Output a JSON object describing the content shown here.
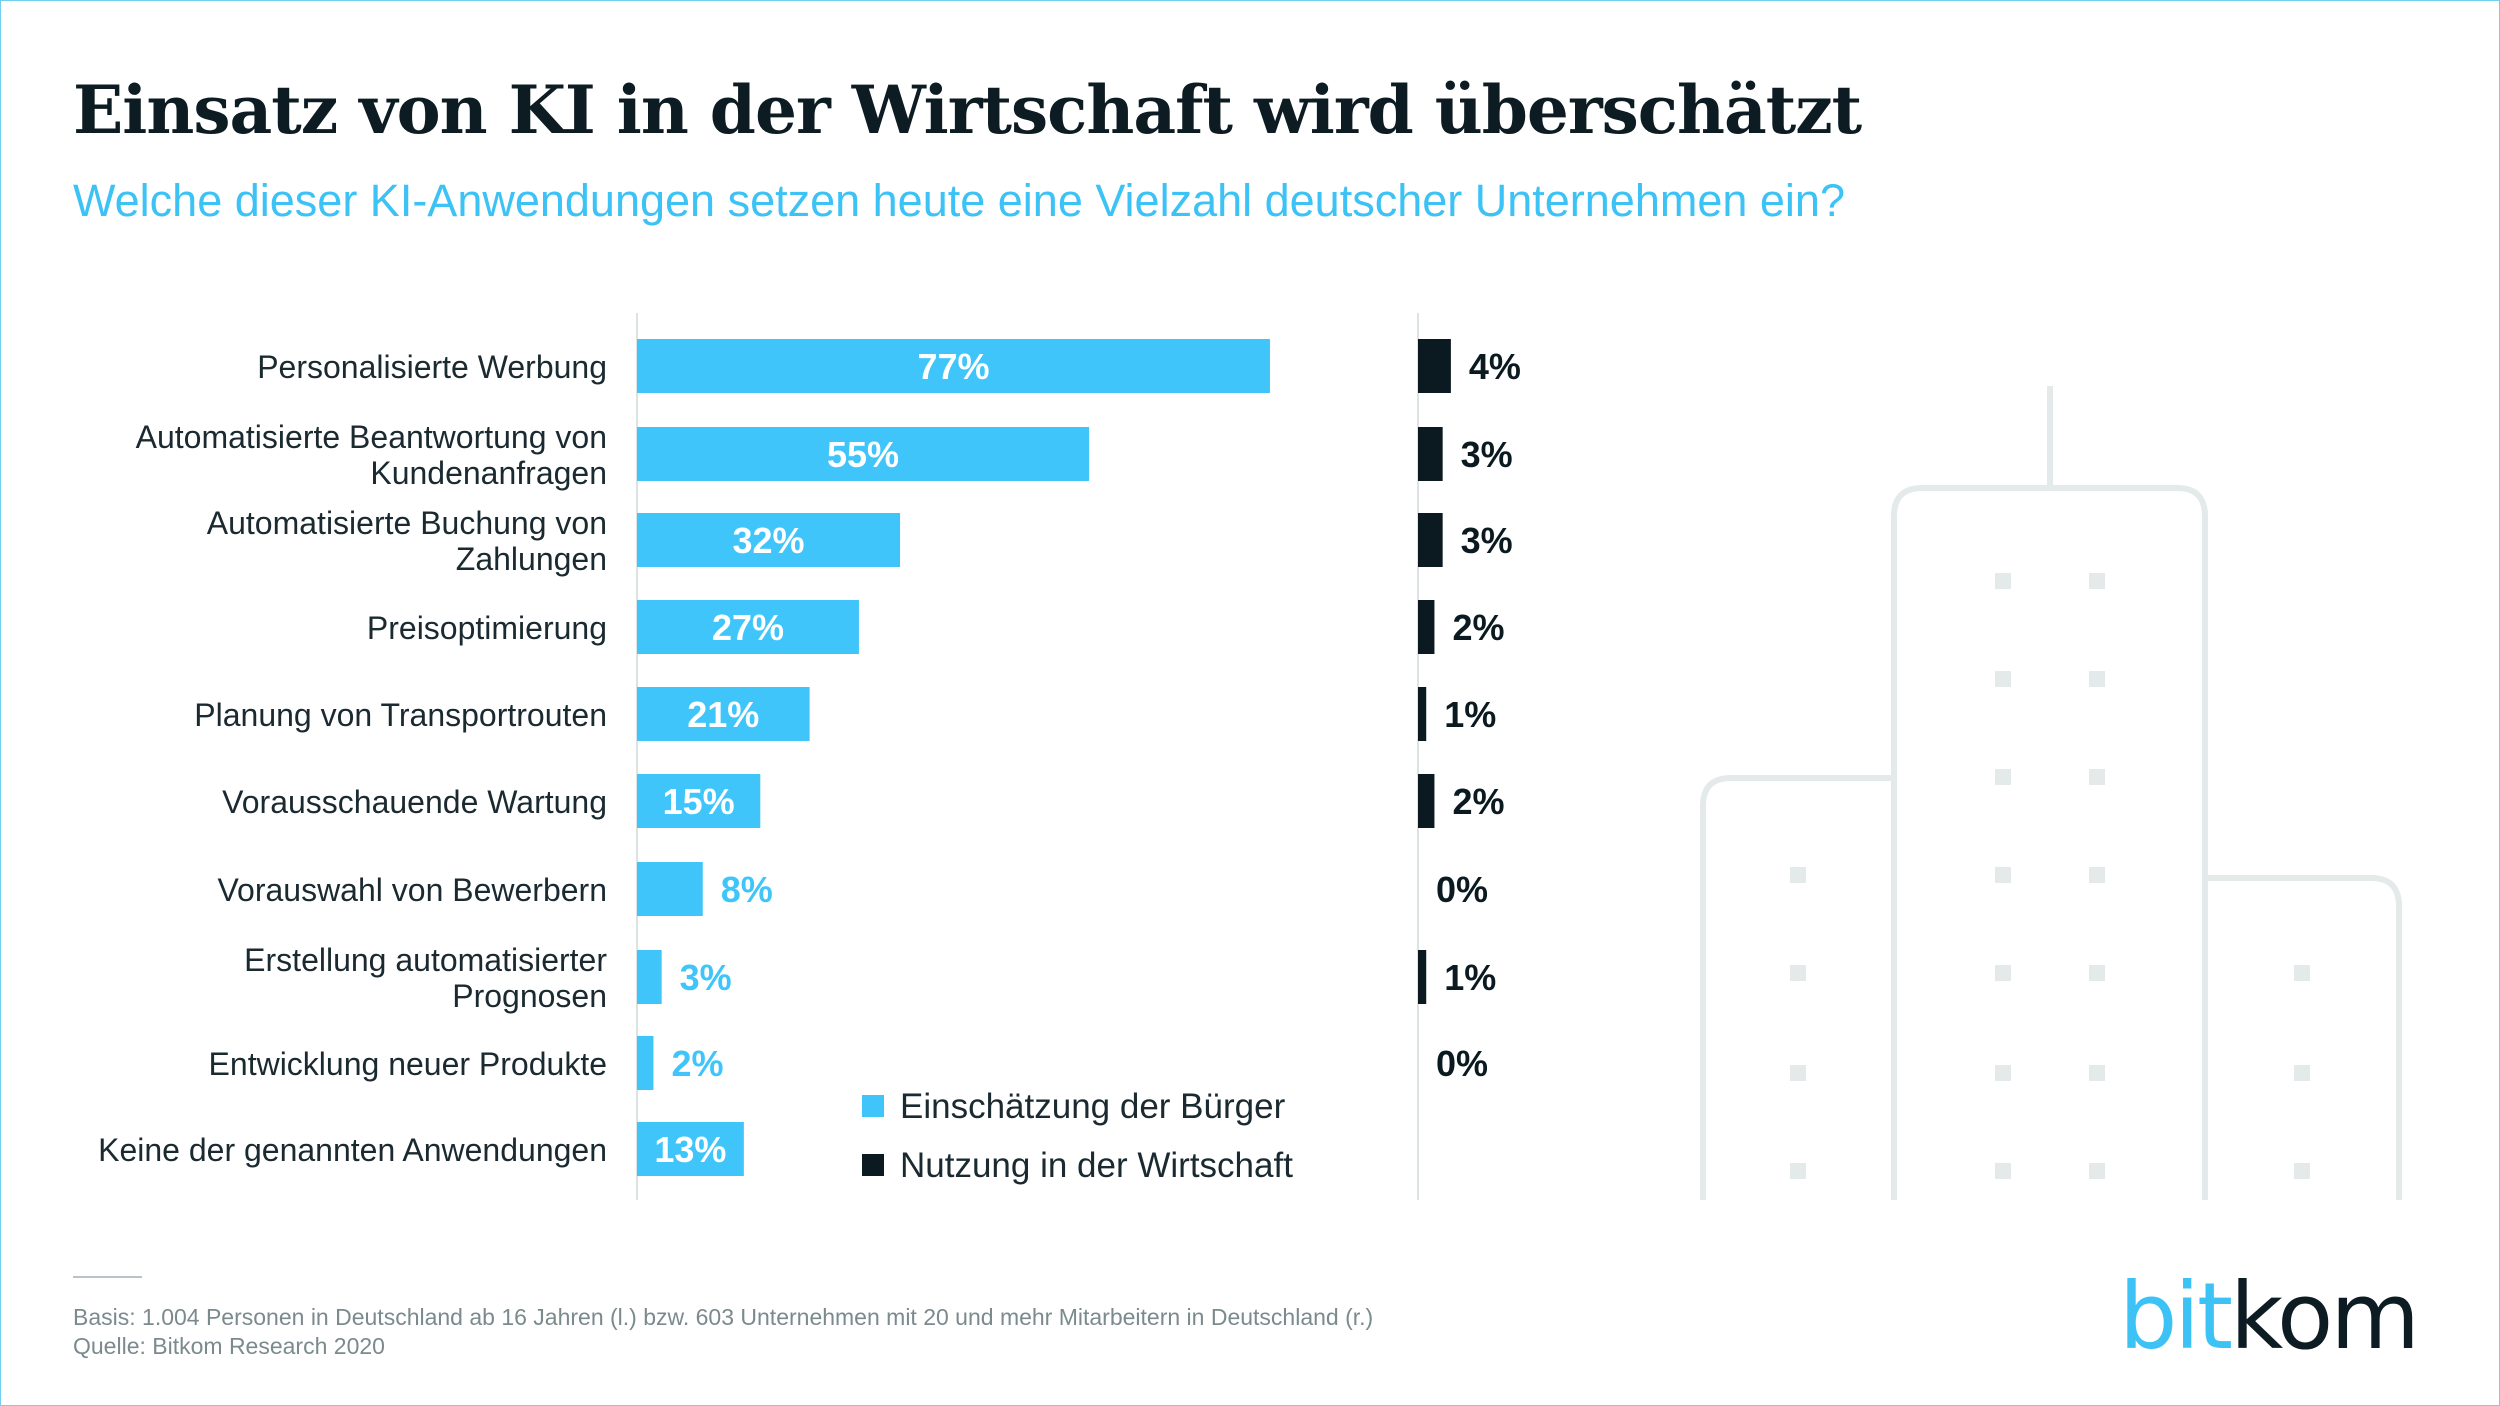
{
  "title": "Einsatz von KI in der Wirtschaft wird überschätzt",
  "subtitle": "Welche dieser KI-Anwendungen setzen heute eine Vielzahl deutscher Unternehmen ein?",
  "colors": {
    "citizens": "#40c5fa",
    "business": "#0b1a21",
    "building": "#e4e9ea"
  },
  "chart_data": {
    "type": "bar",
    "orientation": "horizontal",
    "categories": [
      "Personalisierte Werbung",
      "Automatisierte Beantwortung von Kundenanfragen",
      "Automatisierte Buchung von Zahlungen",
      "Preisoptimierung",
      "Planung von Transportrouten",
      "Vorausschauende Wartung",
      "Vorauswahl von Bewerbern",
      "Erstellung automatisierter Prognosen",
      "Entwicklung neuer Produkte",
      "Keine der genannten Anwendungen"
    ],
    "category_lines": [
      [
        "Personalisierte Werbung"
      ],
      [
        "Automatisierte Beantwortung von",
        "Kundenanfragen"
      ],
      [
        "Automatisierte Buchung von",
        "Zahlungen"
      ],
      [
        "Preisoptimierung"
      ],
      [
        "Planung von Transportrouten"
      ],
      [
        "Vorausschauende Wartung"
      ],
      [
        "Vorauswahl von Bewerbern"
      ],
      [
        "Erstellung automatisierter",
        "Prognosen"
      ],
      [
        "Entwicklung neuer Produkte"
      ],
      [
        "Keine der genannten Anwendungen"
      ]
    ],
    "series": [
      {
        "name": "Einschätzung der Bürger",
        "values": [
          77,
          55,
          32,
          27,
          21,
          15,
          8,
          3,
          2,
          13
        ]
      },
      {
        "name": "Nutzung in der Wirtschaft",
        "values": [
          4,
          3,
          3,
          2,
          1,
          2,
          0,
          1,
          0,
          null
        ]
      }
    ],
    "unit": "%",
    "legend": "bottom-center"
  },
  "footer": {
    "basis": "Basis: 1.004 Personen in Deutschland ab 16 Jahren (l.) bzw. 603 Unternehmen mit 20 und mehr Mitarbeitern in Deutschland (r.)",
    "source": "Quelle: Bitkom Research 2020"
  },
  "logo": {
    "part1": "bit",
    "part2": "kom"
  }
}
